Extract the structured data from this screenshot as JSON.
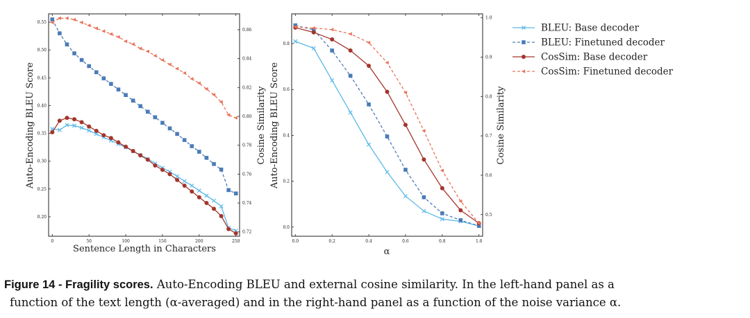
{
  "chart_data": [
    {
      "type": "line",
      "panel": "left",
      "xlabel": "Sentence Length in Characters",
      "ylabel": "Auto-Encoding BLEU Score",
      "y2label": "Cosine Similarity",
      "xlim": [
        -5,
        255
      ],
      "ylim": [
        0.165,
        0.565
      ],
      "y2lim": [
        0.717,
        0.871
      ],
      "xticks": [
        "0",
        "50",
        "100",
        "150",
        "200",
        "250"
      ],
      "yticks": [
        "0.20",
        "0.25",
        "0.30",
        "0.35",
        "0.40",
        "0.45",
        "0.50",
        "0.55"
      ],
      "y2ticks": [
        "0.72",
        "0.74",
        "0.76",
        "0.78",
        "0.80",
        "0.82",
        "0.84",
        "0.86"
      ],
      "x": [
        0,
        10,
        20,
        30,
        40,
        50,
        60,
        70,
        80,
        90,
        100,
        110,
        120,
        130,
        140,
        150,
        160,
        170,
        180,
        190,
        200,
        210,
        220,
        230,
        240,
        250
      ],
      "series": [
        {
          "name": "BLEU: Base decoder",
          "axis": "left",
          "values": [
            0.358,
            0.356,
            0.365,
            0.364,
            0.36,
            0.355,
            0.349,
            0.343,
            0.337,
            0.331,
            0.325,
            0.318,
            0.311,
            0.304,
            0.296,
            0.288,
            0.281,
            0.273,
            0.264,
            0.256,
            0.247,
            0.238,
            0.229,
            0.219,
            0.18,
            0.175
          ]
        },
        {
          "name": "BLEU: Finetuned decoder",
          "axis": "left",
          "values": [
            0.555,
            0.53,
            0.51,
            0.494,
            0.482,
            0.471,
            0.46,
            0.449,
            0.439,
            0.429,
            0.419,
            0.409,
            0.399,
            0.389,
            0.379,
            0.369,
            0.359,
            0.349,
            0.338,
            0.327,
            0.317,
            0.306,
            0.295,
            0.285,
            0.248,
            0.242
          ]
        },
        {
          "name": "CosSim: Base decoder",
          "axis": "right",
          "values": [
            0.789,
            0.797,
            0.799,
            0.798,
            0.796,
            0.793,
            0.79,
            0.787,
            0.785,
            0.782,
            0.779,
            0.776,
            0.773,
            0.77,
            0.766,
            0.763,
            0.76,
            0.756,
            0.752,
            0.748,
            0.744,
            0.74,
            0.736,
            0.731,
            0.722,
            0.719
          ]
        },
        {
          "name": "CosSim: Finetuned decoder",
          "axis": "right",
          "values": [
            0.865,
            0.868,
            0.868,
            0.867,
            0.865,
            0.863,
            0.861,
            0.859,
            0.857,
            0.855,
            0.852,
            0.85,
            0.847,
            0.845,
            0.842,
            0.839,
            0.836,
            0.833,
            0.83,
            0.826,
            0.823,
            0.819,
            0.815,
            0.81,
            0.801,
            0.799
          ]
        }
      ]
    },
    {
      "type": "line",
      "panel": "right",
      "xlabel": "α",
      "ylabel": "Auto-Encoding BLEU Score",
      "y2label": "Cosine Similarity",
      "xlim": [
        -0.02,
        1.02
      ],
      "ylim": [
        -0.04,
        0.93
      ],
      "y2lim": [
        0.445,
        1.01
      ],
      "xticks": [
        "0.0",
        "0.2",
        "0.4",
        "0.6",
        "0.8",
        "1.0"
      ],
      "yticks": [
        "0.0",
        "0.2",
        "0.4",
        "0.6",
        "0.8"
      ],
      "y2ticks": [
        "0.5",
        "0.6",
        "0.7",
        "0.8",
        "0.9",
        "1.0"
      ],
      "x": [
        0.0,
        0.1,
        0.2,
        0.3,
        0.4,
        0.5,
        0.6,
        0.7,
        0.8,
        0.9,
        1.0
      ],
      "series": [
        {
          "name": "BLEU: Base decoder",
          "axis": "left",
          "values": [
            0.81,
            0.78,
            0.64,
            0.5,
            0.36,
            0.24,
            0.135,
            0.07,
            0.035,
            0.025,
            0.005
          ]
        },
        {
          "name": "BLEU: Finetuned decoder",
          "axis": "left",
          "values": [
            0.88,
            0.86,
            0.77,
            0.66,
            0.535,
            0.395,
            0.25,
            0.13,
            0.06,
            0.03,
            0.005
          ]
        },
        {
          "name": "CosSim: Base decoder",
          "axis": "right",
          "values": [
            0.975,
            0.963,
            0.945,
            0.917,
            0.878,
            0.812,
            0.728,
            0.64,
            0.567,
            0.511,
            0.478
          ]
        },
        {
          "name": "CosSim: Finetuned decoder",
          "axis": "right",
          "values": [
            0.977,
            0.974,
            0.97,
            0.959,
            0.937,
            0.886,
            0.81,
            0.713,
            0.612,
            0.534,
            0.478
          ]
        }
      ]
    }
  ],
  "legend": [
    {
      "label": "BLEU: Base decoder",
      "color": "#5bb8e8",
      "marker": "x",
      "dash": false
    },
    {
      "label": "BLEU: Finetuned decoder",
      "color": "#4a7bb7",
      "marker": "square",
      "dash": true
    },
    {
      "label": "CosSim: Base decoder",
      "color": "#a3352b",
      "marker": "circle",
      "dash": false
    },
    {
      "label": "CosSim: Finetuned decoder",
      "color": "#e8735a",
      "marker": "triangle",
      "dash": true
    }
  ],
  "caption": {
    "lead": "Figure 14 - Fragility scores.",
    "line1": "Auto-Encoding BLEU and external cosine similarity. In the left-hand panel as a",
    "line2": "function of the text length (α-averaged) and in the right-hand panel as a function of the noise variance α."
  }
}
